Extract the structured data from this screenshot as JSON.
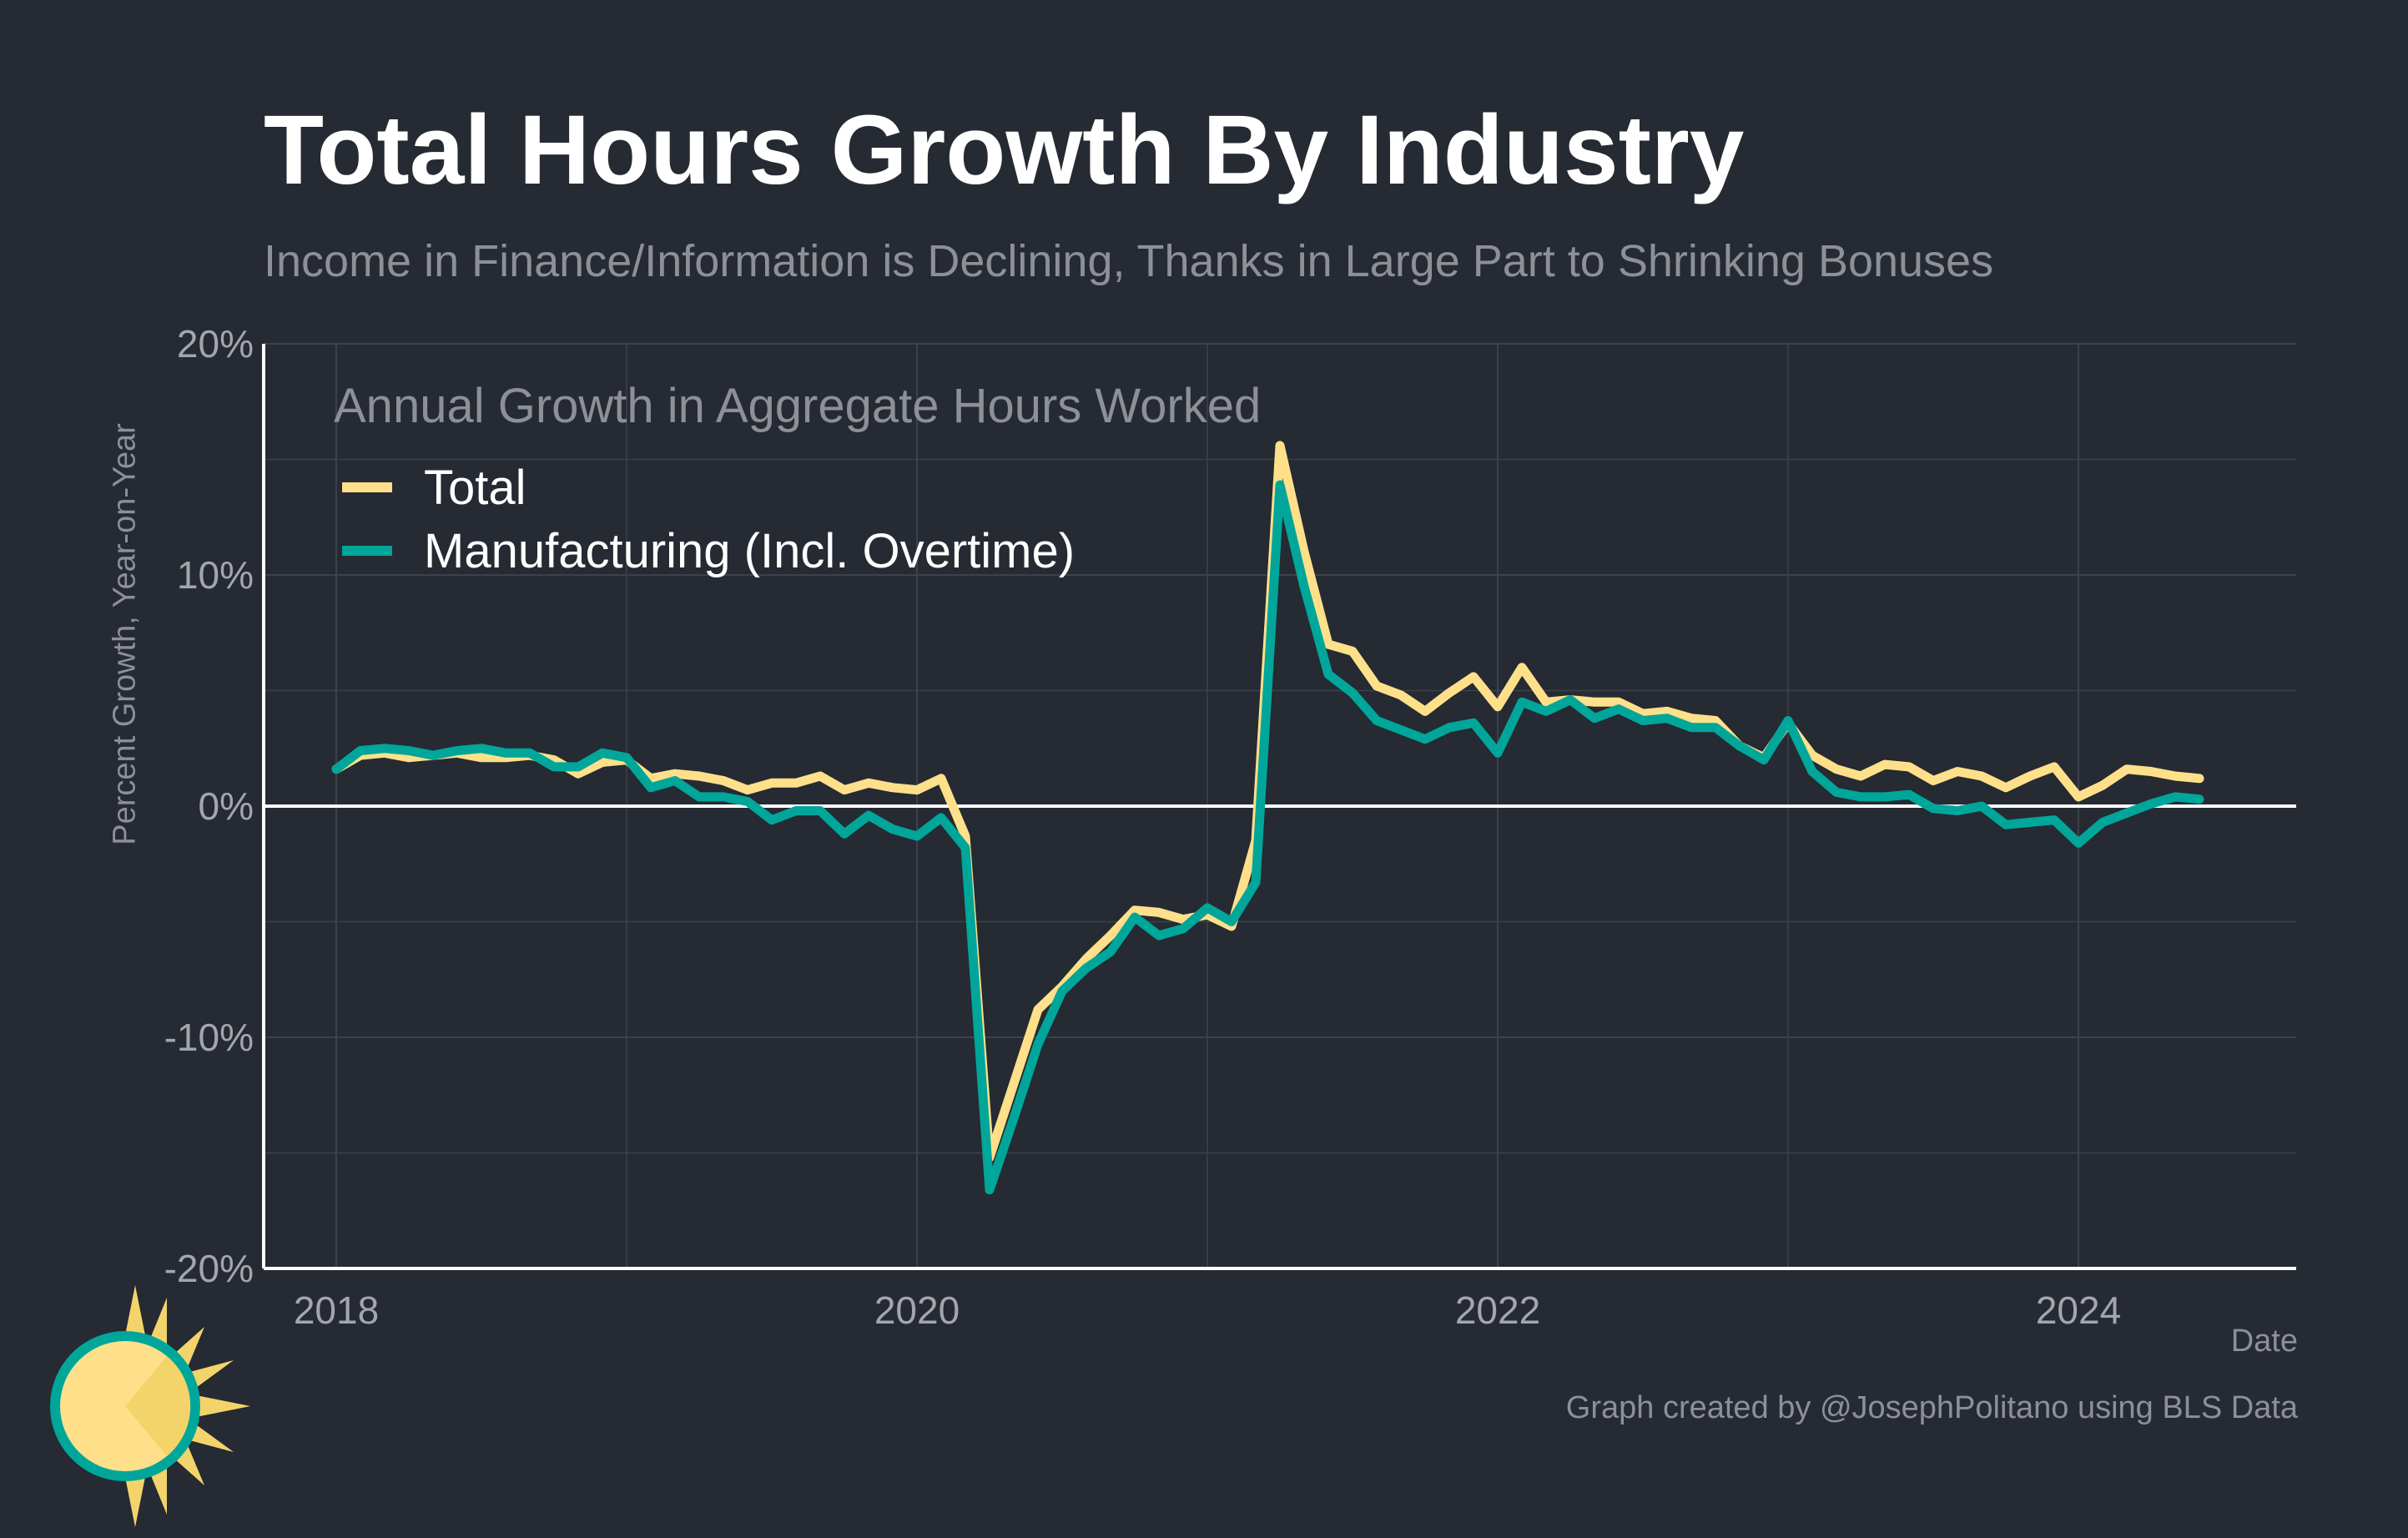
{
  "header": {
    "title": "Total Hours Growth By Industry",
    "subtitle": "Income in Finance/Information is Declining, Thanks in Large Part to Shrinking Bonuses"
  },
  "footer": {
    "caption": "Graph created by @JosephPolitano using BLS Data"
  },
  "colors": {
    "background": "#252a33",
    "total": "#ffe08a",
    "manufacturing": "#00a69a",
    "zero_line": "#ffffff",
    "grid": "#3c414b"
  },
  "chart_data": {
    "type": "line",
    "xlabel": "Date",
    "ylabel": "Percent Growth, Year-on-Year",
    "ylim": [
      -20,
      20
    ],
    "xlim": [
      2017.75,
      2024.75
    ],
    "x_ticks": [
      2018,
      2020,
      2022,
      2024
    ],
    "x_tick_labels": [
      "2018",
      "2020",
      "2022",
      "2024"
    ],
    "y_ticks": [
      -20,
      -10,
      0,
      10,
      20
    ],
    "y_tick_labels": [
      "-20%",
      "-10%",
      "0%",
      "10%",
      "20%"
    ],
    "grid": true,
    "legend_title": "Annual Growth in Aggregate Hours Worked",
    "legend_position": "top-left",
    "x_start": "2018-01",
    "x_frequency": "monthly",
    "series": [
      {
        "name": "Total",
        "color": "#ffe08a",
        "values": [
          1.6,
          2.2,
          2.3,
          2.1,
          2.2,
          2.3,
          2.1,
          2.1,
          2.2,
          2.0,
          1.4,
          1.9,
          2.0,
          1.2,
          1.4,
          1.3,
          1.1,
          0.7,
          1.0,
          1.0,
          1.3,
          0.7,
          1.0,
          0.8,
          0.7,
          1.2,
          -1.3,
          -15.2,
          -12.0,
          -8.8,
          -7.8,
          -6.6,
          -5.6,
          -4.5,
          -4.6,
          -4.9,
          -4.7,
          -5.2,
          -1.5,
          15.6,
          11.0,
          7.0,
          6.7,
          5.2,
          4.8,
          4.1,
          4.9,
          5.6,
          4.3,
          6.0,
          4.5,
          4.6,
          4.5,
          4.5,
          4.0,
          4.1,
          3.8,
          3.7,
          2.6,
          2.1,
          3.6,
          2.2,
          1.6,
          1.3,
          1.8,
          1.7,
          1.1,
          1.5,
          1.3,
          0.8,
          1.3,
          1.7,
          0.4,
          0.9,
          1.6,
          1.5,
          1.3,
          1.2
        ]
      },
      {
        "name": "Manufacturing (Incl. Overtime)",
        "color": "#00a69a",
        "values": [
          1.6,
          2.4,
          2.5,
          2.4,
          2.2,
          2.4,
          2.5,
          2.3,
          2.3,
          1.7,
          1.7,
          2.3,
          2.1,
          0.8,
          1.1,
          0.4,
          0.4,
          0.2,
          -0.6,
          -0.2,
          -0.2,
          -1.2,
          -0.4,
          -1.0,
          -1.3,
          -0.5,
          -1.8,
          -16.6,
          -13.5,
          -10.3,
          -8.0,
          -7.0,
          -6.3,
          -4.8,
          -5.6,
          -5.3,
          -4.4,
          -5.0,
          -3.3,
          13.9,
          9.5,
          5.7,
          4.9,
          3.7,
          3.3,
          2.9,
          3.4,
          3.6,
          2.3,
          4.5,
          4.1,
          4.6,
          3.8,
          4.2,
          3.7,
          3.8,
          3.4,
          3.4,
          2.6,
          2.0,
          3.7,
          1.5,
          0.6,
          0.4,
          0.4,
          0.5,
          -0.1,
          -0.2,
          0.0,
          -0.8,
          -0.7,
          -0.6,
          -1.6,
          -0.7,
          -0.3,
          0.1,
          0.4,
          0.3
        ]
      }
    ]
  }
}
